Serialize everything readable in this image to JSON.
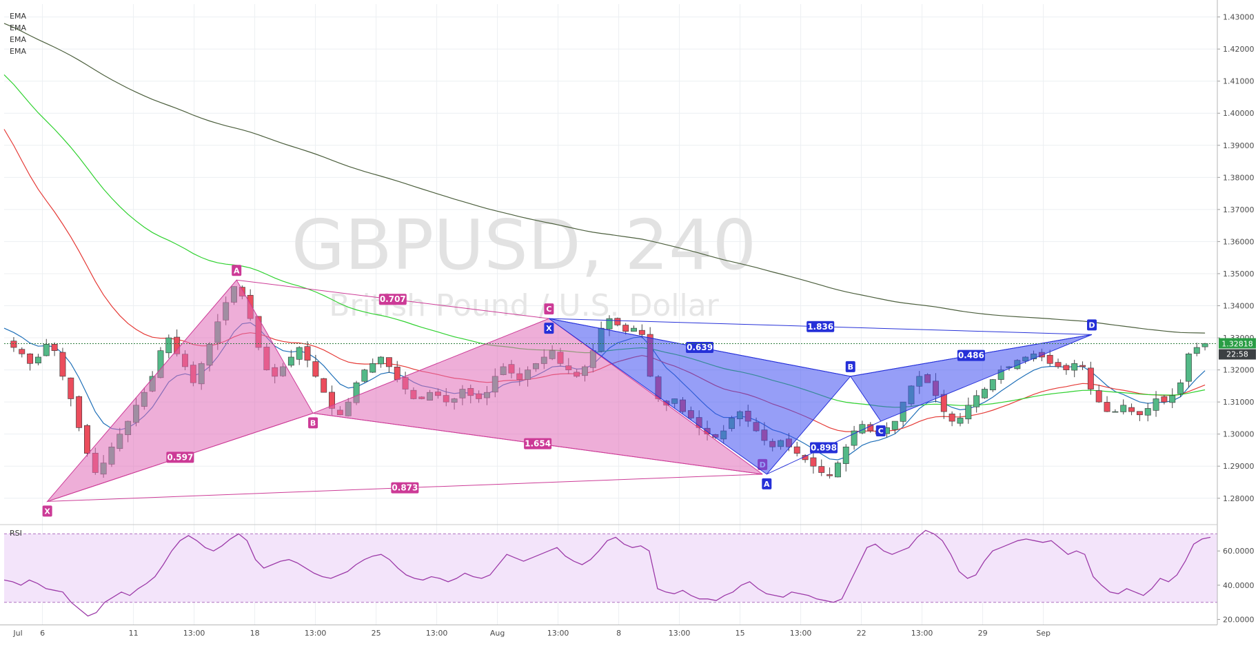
{
  "chart_data": {
    "type": "candlestick",
    "symbol": "GBPUSD, 240",
    "description": "British Pound / U.S. Dollar",
    "ylim": [
      1.272,
      1.434
    ],
    "y_ticks": [
      "1.28000",
      "1.29000",
      "1.30000",
      "1.31000",
      "1.32000",
      "1.33000",
      "1.34000",
      "1.35000",
      "1.36000",
      "1.37000",
      "1.38000",
      "1.39000",
      "1.40000",
      "1.41000",
      "1.42000",
      "1.43000"
    ],
    "x_ticks": [
      {
        "label": "Jul",
        "t": 0.0
      },
      {
        "label": "6",
        "t": 0.15
      },
      {
        "label": "11",
        "t": 0.3
      },
      {
        "label": "13:00",
        "t": 0.4
      },
      {
        "label": "18",
        "t": 0.5
      },
      {
        "label": "13:00",
        "t": 0.6
      },
      {
        "label": "25",
        "t": 0.7
      },
      {
        "label": "13:00",
        "t": 0.8
      },
      {
        "label": "Aug",
        "t": 0.9
      },
      {
        "label": "13:00",
        "t": 1.0
      },
      {
        "label": "8",
        "t": 1.1
      },
      {
        "label": "13:00",
        "t": 1.2
      },
      {
        "label": "15",
        "t": 1.3
      },
      {
        "label": "13:00",
        "t": 1.4
      },
      {
        "label": "22",
        "t": 1.5
      },
      {
        "label": "13:00",
        "t": 1.6
      },
      {
        "label": "29",
        "t": 1.7
      },
      {
        "label": "Sep",
        "t": 1.8
      }
    ],
    "current_price": "1.32818",
    "countdown": "22:58",
    "indicators": [
      "EMA",
      "EMA",
      "EMA",
      "EMA"
    ],
    "ema_colors": [
      "#1e6fb8",
      "#e53935",
      "#2ed12e",
      "#4b5e3c"
    ],
    "price_path": [
      1.327,
      1.325,
      1.322,
      1.324,
      1.328,
      1.326,
      1.318,
      1.311,
      1.302,
      1.294,
      1.288,
      1.291,
      1.296,
      1.3,
      1.304,
      1.309,
      1.313,
      1.318,
      1.326,
      1.33,
      1.325,
      1.321,
      1.316,
      1.322,
      1.328,
      1.335,
      1.341,
      1.346,
      1.343,
      1.336,
      1.327,
      1.32,
      1.318,
      1.321,
      1.324,
      1.327,
      1.323,
      1.318,
      1.313,
      1.308,
      1.306,
      1.31,
      1.316,
      1.32,
      1.322,
      1.324,
      1.321,
      1.317,
      1.314,
      1.311,
      1.311,
      1.313,
      1.312,
      1.31,
      1.311,
      1.314,
      1.312,
      1.311,
      1.313,
      1.318,
      1.321,
      1.319,
      1.317,
      1.32,
      1.322,
      1.324,
      1.326,
      1.322,
      1.32,
      1.318,
      1.321,
      1.326,
      1.333,
      1.336,
      1.334,
      1.332,
      1.333,
      1.331,
      1.318,
      1.311,
      1.309,
      1.311,
      1.307,
      1.305,
      1.302,
      1.3,
      1.299,
      1.301,
      1.305,
      1.307,
      1.304,
      1.301,
      1.298,
      1.296,
      1.298,
      1.296,
      1.294,
      1.292,
      1.29,
      1.288,
      1.287,
      1.291,
      1.296,
      1.301,
      1.303,
      1.301,
      1.3,
      1.302,
      1.304,
      1.31,
      1.315,
      1.318,
      1.316,
      1.312,
      1.307,
      1.304,
      1.305,
      1.309,
      1.312,
      1.314,
      1.317,
      1.32,
      1.321,
      1.323,
      1.324,
      1.325,
      1.324,
      1.322,
      1.321,
      1.32,
      1.322,
      1.321,
      1.314,
      1.31,
      1.307,
      1.307,
      1.309,
      1.307,
      1.306,
      1.308,
      1.311,
      1.31,
      1.312,
      1.316,
      1.325,
      1.327,
      1.3282
    ],
    "rsi_path": [
      43,
      42,
      40,
      43,
      41,
      38,
      37,
      36,
      30,
      26,
      22,
      24,
      30,
      33,
      36,
      34,
      38,
      41,
      45,
      52,
      60,
      66,
      69,
      66,
      62,
      60,
      63,
      67,
      70,
      66,
      55,
      50,
      52,
      54,
      55,
      53,
      50,
      47,
      45,
      44,
      46,
      48,
      52,
      55,
      57,
      58,
      55,
      50,
      46,
      44,
      43,
      45,
      44,
      42,
      44,
      47,
      45,
      44,
      46,
      52,
      58,
      56,
      54,
      56,
      58,
      60,
      62,
      57,
      54,
      52,
      55,
      60,
      66,
      68,
      64,
      62,
      63,
      60,
      38,
      36,
      35,
      37,
      34,
      32,
      32,
      31,
      34,
      36,
      40,
      42,
      38,
      35,
      34,
      33,
      36,
      35,
      34,
      32,
      31,
      30,
      32,
      42,
      52,
      62,
      64,
      60,
      58,
      60,
      62,
      68,
      72,
      70,
      66,
      58,
      48,
      44,
      46,
      54,
      60,
      62,
      64,
      66,
      67,
      66,
      65,
      66,
      62,
      58,
      60,
      58,
      45,
      40,
      36,
      35,
      38,
      36,
      34,
      38,
      44,
      42,
      46,
      54,
      64,
      67,
      68
    ],
    "rsi": {
      "label": "RSI",
      "ticks": [
        "20.0000",
        "40.0000",
        "60.0000"
      ],
      "upper_band": 70,
      "lower_band": 30,
      "range": [
        17,
        75
      ]
    },
    "harmonic_pink": {
      "points": [
        {
          "label": "X",
          "t": 0.158,
          "price": 1.279
        },
        {
          "label": "A",
          "t": 0.47,
          "price": 1.348
        },
        {
          "label": "B",
          "t": 0.596,
          "price": 1.3065
        },
        {
          "label": "C",
          "t": 0.985,
          "price": 1.336
        },
        {
          "label": "D",
          "t": 1.337,
          "price": 1.2875
        }
      ],
      "ratios": [
        {
          "value": "0.597"
        },
        {
          "value": "0.707"
        },
        {
          "value": "1.654"
        },
        {
          "value": "0.873"
        }
      ]
    },
    "harmonic_blue": {
      "points": [
        {
          "label": "X",
          "t": 0.985,
          "price": 1.336
        },
        {
          "label": "A",
          "t": 1.344,
          "price": 1.2875
        },
        {
          "label": "B",
          "t": 1.482,
          "price": 1.318
        },
        {
          "label": "C",
          "t": 1.532,
          "price": 1.304
        },
        {
          "label": "D",
          "t": 1.88,
          "price": 1.331
        }
      ],
      "ratios": [
        {
          "value": "0.639"
        },
        {
          "value": "0.898"
        },
        {
          "value": "0.486"
        },
        {
          "value": "1.836"
        }
      ]
    }
  }
}
